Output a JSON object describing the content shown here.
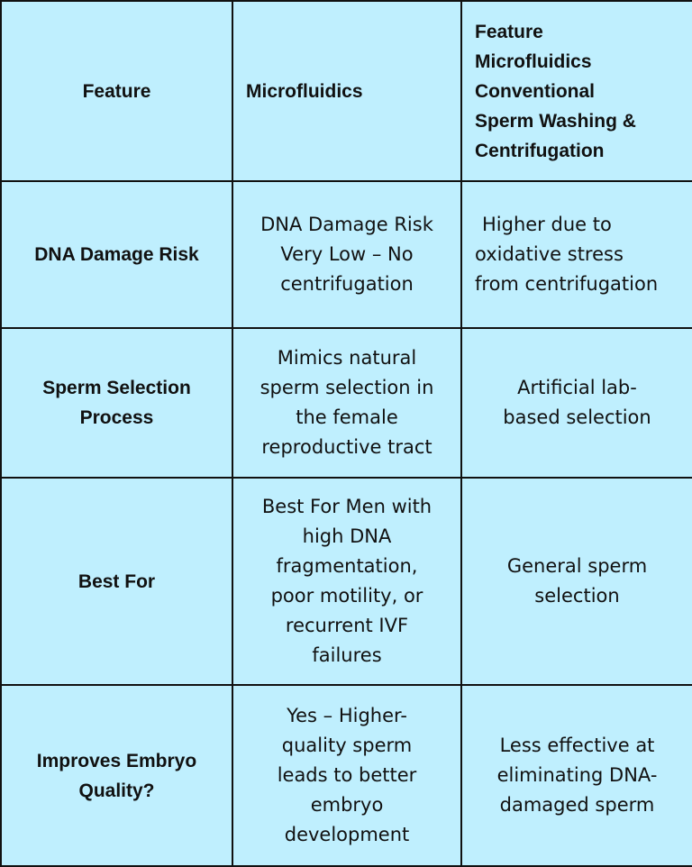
{
  "table": {
    "headers": {
      "col1": "Feature",
      "col2": "Microfluidics",
      "col3_lines": [
        "Feature",
        "Microfluidics",
        "Conventional",
        "Sperm Washing &",
        "Centrifugation"
      ]
    },
    "rows": [
      {
        "label": "DNA Damage Risk",
        "microfluidics_lines": [
          "DNA Damage Risk",
          "Very Low – No",
          "centrifugation"
        ],
        "conventional_lines": [
          "Higher due to",
          "oxidative stress",
          "from centrifugation"
        ]
      },
      {
        "label_lines": [
          "Sperm Selection",
          "Process"
        ],
        "microfluidics_lines": [
          "Mimics natural",
          "sperm selection in",
          "the female",
          "reproductive tract"
        ],
        "conventional_lines": [
          "Artificial lab-",
          "based selection"
        ]
      },
      {
        "label": "Best For",
        "microfluidics_lines": [
          "Best For Men with",
          "high DNA",
          "fragmentation,",
          "poor motility, or",
          "recurrent IVF",
          "failures"
        ],
        "conventional_lines": [
          "General sperm",
          "selection"
        ]
      },
      {
        "label_lines": [
          "Improves Embryo",
          "Quality?"
        ],
        "microfluidics_lines": [
          "Yes – Higher-",
          "quality sperm",
          "leads to better",
          "embryo",
          "development"
        ],
        "conventional_lines": [
          "Less effective at",
          "eliminating DNA-",
          "damaged sperm"
        ]
      }
    ]
  }
}
